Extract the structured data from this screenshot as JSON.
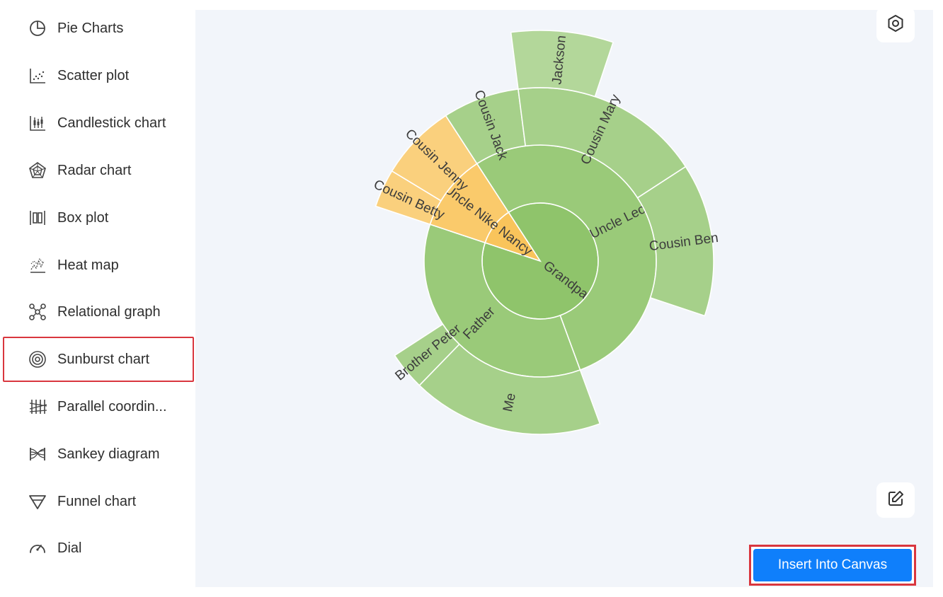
{
  "sidebar": {
    "items": [
      {
        "label": "Pie Charts",
        "icon": "pie-chart-icon"
      },
      {
        "label": "Scatter plot",
        "icon": "scatter-plot-icon"
      },
      {
        "label": "Candlestick chart",
        "icon": "candlestick-chart-icon"
      },
      {
        "label": "Radar chart",
        "icon": "radar-chart-icon"
      },
      {
        "label": "Box plot",
        "icon": "box-plot-icon"
      },
      {
        "label": "Heat map",
        "icon": "heat-map-icon"
      },
      {
        "label": "Relational graph",
        "icon": "relational-graph-icon"
      },
      {
        "label": "Sunburst chart",
        "icon": "sunburst-chart-icon",
        "selected": true
      },
      {
        "label": "Parallel coordin...",
        "icon": "parallel-coordinates-icon"
      },
      {
        "label": "Sankey diagram",
        "icon": "sankey-diagram-icon"
      },
      {
        "label": "Funnel chart",
        "icon": "funnel-chart-icon"
      },
      {
        "label": "Dial",
        "icon": "dial-icon"
      }
    ]
  },
  "toolbar": {
    "settings_icon": "settings-hexagon-icon",
    "edit_icon": "edit-icon",
    "insert_label": "Insert Into Canvas"
  },
  "colors": {
    "accent": "#0f7ffb",
    "selection_border": "#d9363e",
    "canvas_bg": "#f2f5fa",
    "green": "#8fc46b",
    "orange": "#f9c45b"
  },
  "chart_data": {
    "type": "sunburst",
    "title": "",
    "data": [
      {
        "name": "Grandpa",
        "children": [
          {
            "name": "Uncle Leo",
            "value": 15,
            "children": [
              {
                "name": "Cousin Jack",
                "value": 2
              },
              {
                "name": "Cousin Mary",
                "value": 5,
                "children": [
                  {
                    "name": "Jackson",
                    "value": 2
                  }
                ]
              },
              {
                "name": "Cousin Ben",
                "value": 4
              }
            ]
          },
          {
            "name": "Father",
            "value": 10,
            "children": [
              {
                "name": "Me",
                "value": 5
              },
              {
                "name": "Brother Peter",
                "value": 1
              }
            ]
          }
        ]
      },
      {
        "name": "Nancy",
        "children": [
          {
            "name": "Uncle Nike",
            "children": [
              {
                "name": "Cousin Betty",
                "value": 1
              },
              {
                "name": "Cousin Jenny",
                "value": 2
              }
            ]
          }
        ]
      }
    ]
  }
}
